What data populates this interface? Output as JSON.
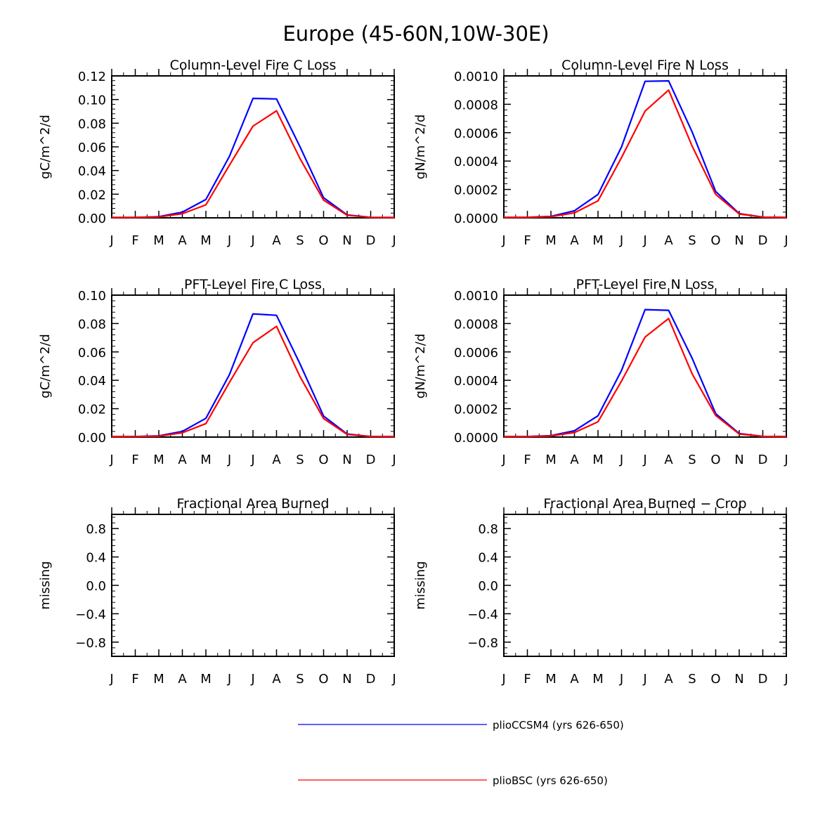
{
  "figure": {
    "title": "Europe (45-60N,10W-30E)"
  },
  "legend": [
    {
      "name": "plioCCSM4 (yrs 626-650)",
      "color": "#0000ff"
    },
    {
      "name": "plioBSC (yrs 626-650)",
      "color": "#ff0000"
    }
  ],
  "chart_data": [
    {
      "type": "line",
      "title": "Column-Level Fire C Loss",
      "ylabel": "gC/m^2/d",
      "xlabel": "",
      "categories": [
        "J",
        "F",
        "M",
        "A",
        "M",
        "J",
        "J",
        "A",
        "S",
        "O",
        "N",
        "D",
        "J"
      ],
      "ylim": [
        0,
        0.12
      ],
      "yticks": [
        0.0,
        0.02,
        0.04,
        0.06,
        0.08,
        0.1,
        0.12
      ],
      "ytick_labels": [
        "0.00",
        "0.02",
        "0.04",
        "0.06",
        "0.08",
        "0.10",
        "0.12"
      ],
      "series": [
        {
          "name": "plioCCSM4 (yrs 626-650)",
          "color": "#0000ff",
          "values": [
            0.0003,
            0.0004,
            0.001,
            0.0048,
            0.0155,
            0.052,
            0.101,
            0.1005,
            0.06,
            0.017,
            0.0025,
            0.0004,
            0.0003
          ]
        },
        {
          "name": "plioBSC (yrs 626-650)",
          "color": "#ff0000",
          "values": [
            0.0003,
            0.0004,
            0.0008,
            0.0035,
            0.011,
            0.0445,
            0.0775,
            0.0905,
            0.05,
            0.015,
            0.0022,
            0.0004,
            0.0003
          ]
        }
      ]
    },
    {
      "type": "line",
      "title": "Column-Level Fire N Loss",
      "ylabel": "gN/m^2/d",
      "xlabel": "",
      "categories": [
        "J",
        "F",
        "M",
        "A",
        "M",
        "J",
        "J",
        "A",
        "S",
        "O",
        "N",
        "D",
        "J"
      ],
      "ylim": [
        0,
        0.001
      ],
      "yticks": [
        0,
        0.0002,
        0.0004,
        0.0006,
        0.0008,
        0.001
      ],
      "ytick_labels": [
        "0.0000",
        "0.0002",
        "0.0004",
        "0.0006",
        "0.0008",
        "0.0010"
      ],
      "series": [
        {
          "name": "plioCCSM4 (yrs 626-650)",
          "color": "#0000ff",
          "values": [
            3e-06,
            4e-06,
            1e-05,
            5e-05,
            0.000165,
            0.0005,
            0.000962,
            0.000965,
            0.000605,
            0.000185,
            3e-05,
            5e-06,
            3e-06
          ]
        },
        {
          "name": "plioBSC (yrs 626-650)",
          "color": "#ff0000",
          "values": [
            3e-06,
            4e-06,
            8e-06,
            3.5e-05,
            0.00012,
            0.000425,
            0.000752,
            0.0009,
            0.000505,
            0.000165,
            2.7e-05,
            5e-06,
            3e-06
          ]
        }
      ]
    },
    {
      "type": "line",
      "title": "PFT-Level Fire C Loss",
      "ylabel": "gC/m^2/d",
      "xlabel": "",
      "categories": [
        "J",
        "F",
        "M",
        "A",
        "M",
        "J",
        "J",
        "A",
        "S",
        "O",
        "N",
        "D",
        "J"
      ],
      "ylim": [
        0,
        0.1
      ],
      "yticks": [
        0.0,
        0.02,
        0.04,
        0.06,
        0.08,
        0.1
      ],
      "ytick_labels": [
        "0.00",
        "0.02",
        "0.04",
        "0.06",
        "0.08",
        "0.10"
      ],
      "series": [
        {
          "name": "plioCCSM4 (yrs 626-650)",
          "color": "#0000ff",
          "values": [
            0.0003,
            0.0004,
            0.0009,
            0.004,
            0.0132,
            0.044,
            0.0868,
            0.0858,
            0.0515,
            0.0148,
            0.0022,
            0.0004,
            0.0003
          ]
        },
        {
          "name": "plioBSC (yrs 626-650)",
          "color": "#ff0000",
          "values": [
            0.0003,
            0.0004,
            0.0007,
            0.003,
            0.0095,
            0.0385,
            0.0665,
            0.078,
            0.0425,
            0.013,
            0.0019,
            0.0004,
            0.0003
          ]
        }
      ]
    },
    {
      "type": "line",
      "title": "PFT-Level Fire N Loss",
      "ylabel": "gN/m^2/d",
      "xlabel": "",
      "categories": [
        "J",
        "F",
        "M",
        "A",
        "M",
        "J",
        "J",
        "A",
        "S",
        "O",
        "N",
        "D",
        "J"
      ],
      "ylim": [
        0,
        0.001
      ],
      "yticks": [
        0,
        0.0002,
        0.0004,
        0.0006,
        0.0008,
        0.001
      ],
      "ytick_labels": [
        "0.0000",
        "0.0002",
        "0.0004",
        "0.0006",
        "0.0008",
        "0.0010"
      ],
      "series": [
        {
          "name": "plioCCSM4 (yrs 626-650)",
          "color": "#0000ff",
          "values": [
            3e-06,
            4e-06,
            1e-05,
            4.5e-05,
            0.00015,
            0.00047,
            0.000898,
            0.000893,
            0.000555,
            0.000165,
            2.5e-05,
            5e-06,
            3e-06
          ]
        },
        {
          "name": "plioBSC (yrs 626-650)",
          "color": "#ff0000",
          "values": [
            3e-06,
            4e-06,
            8e-06,
            3.2e-05,
            0.000108,
            0.000395,
            0.000705,
            0.000835,
            0.000445,
            0.000152,
            2.2e-05,
            5e-06,
            3e-06
          ]
        }
      ]
    },
    {
      "type": "line",
      "title": "Fractional Area Burned",
      "ylabel": "missing",
      "xlabel": "",
      "categories": [
        "J",
        "F",
        "M",
        "A",
        "M",
        "J",
        "J",
        "A",
        "S",
        "O",
        "N",
        "D",
        "J"
      ],
      "ylim": [
        -1.0,
        1.0
      ],
      "yticks": [
        -0.8,
        -0.4,
        0.0,
        0.4,
        0.8
      ],
      "ytick_labels": [
        "−0.8",
        "−0.4",
        "0.0",
        "0.4",
        "0.8"
      ],
      "series": []
    },
    {
      "type": "line",
      "title": "Fractional Area Burned − Crop",
      "ylabel": "missing",
      "xlabel": "",
      "categories": [
        "J",
        "F",
        "M",
        "A",
        "M",
        "J",
        "J",
        "A",
        "S",
        "O",
        "N",
        "D",
        "J"
      ],
      "ylim": [
        -1.0,
        1.0
      ],
      "yticks": [
        -0.8,
        -0.4,
        0.0,
        0.4,
        0.8
      ],
      "ytick_labels": [
        "−0.8",
        "−0.4",
        "0.0",
        "0.4",
        "0.8"
      ],
      "series": []
    }
  ]
}
